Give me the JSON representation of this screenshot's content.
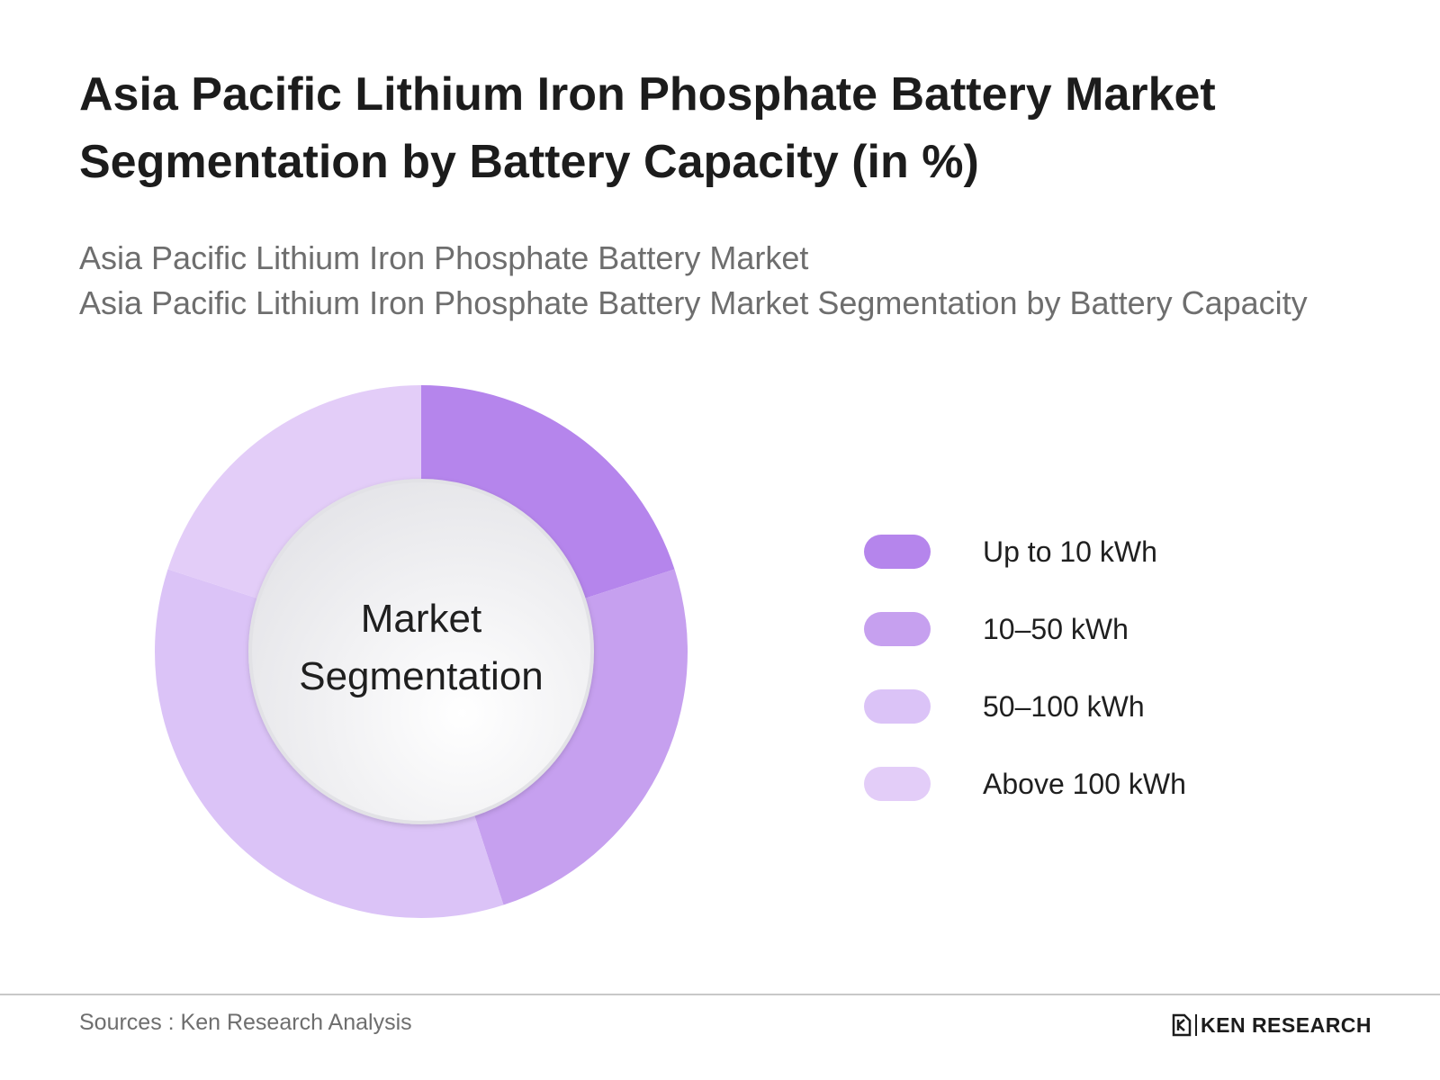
{
  "title": "Asia Pacific Lithium Iron Phosphate Battery Market Segmentation by Battery Capacity (in %)",
  "subtitle_lines": [
    "Asia Pacific Lithium Iron Phosphate Battery Market",
    "Asia Pacific Lithium Iron Phosphate Battery Market Segmentation by Battery Capacity"
  ],
  "center_label": [
    "Market",
    "Segmentation"
  ],
  "source": "Sources : Ken Research Analysis",
  "brand": "KEN RESEARCH",
  "chart_data": {
    "type": "pie",
    "style": "donut",
    "labels": [
      "Up to 10 kWh",
      "10–50 kWh",
      "50–100 kWh",
      "Above 100 kWh"
    ],
    "values": [
      20,
      25,
      35,
      20
    ],
    "colors": [
      "#b585ec",
      "#c6a0ef",
      "#dbc3f7",
      "#e3cdf8"
    ],
    "legend_position": "right",
    "center_fill": "#f2f2f4"
  }
}
